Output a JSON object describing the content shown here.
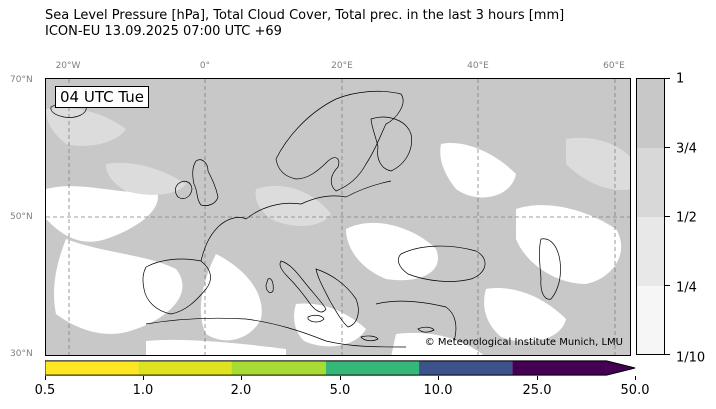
{
  "title": {
    "line1": "Sea Level Pressure [hPa], Total Cloud Cover, Total prec. in the last 3 hours [mm]",
    "line2": "ICON-EU 13.09.2025 07:00 UTC +69"
  },
  "map": {
    "time_label": "04 UTC Tue",
    "copyright": "© Meteorological Institute Munich, LMU",
    "lon_labels": [
      "20°W",
      "0°",
      "20°E",
      "40°E",
      "60°E"
    ],
    "lat_labels": [
      "70°N",
      "50°N",
      "30°N"
    ],
    "extent": {
      "lon_min": -23,
      "lon_max": 63,
      "lat_min": 30,
      "lat_max": 70
    }
  },
  "cloud_cover_colorbar": {
    "labels": [
      "1",
      "3/4",
      "1/2",
      "1/4",
      "1/10"
    ],
    "colors": [
      "#c8c8c8",
      "#d8d8d8",
      "#e8e8e8",
      "#f6f6f6"
    ]
  },
  "precip_colorbar": {
    "labels": [
      "0.5",
      "1.0",
      "2.0",
      "5.0",
      "10.0",
      "25.0",
      "50.0"
    ],
    "colors": [
      "#fde725",
      "#dfe31f",
      "#a8db34",
      "#35b779",
      "#3b528b",
      "#440154"
    ]
  },
  "colors": {
    "land_outline": "#000000",
    "grid": "#808080",
    "cloud_high": "#c8c8c8",
    "clear": "#ffffff"
  }
}
